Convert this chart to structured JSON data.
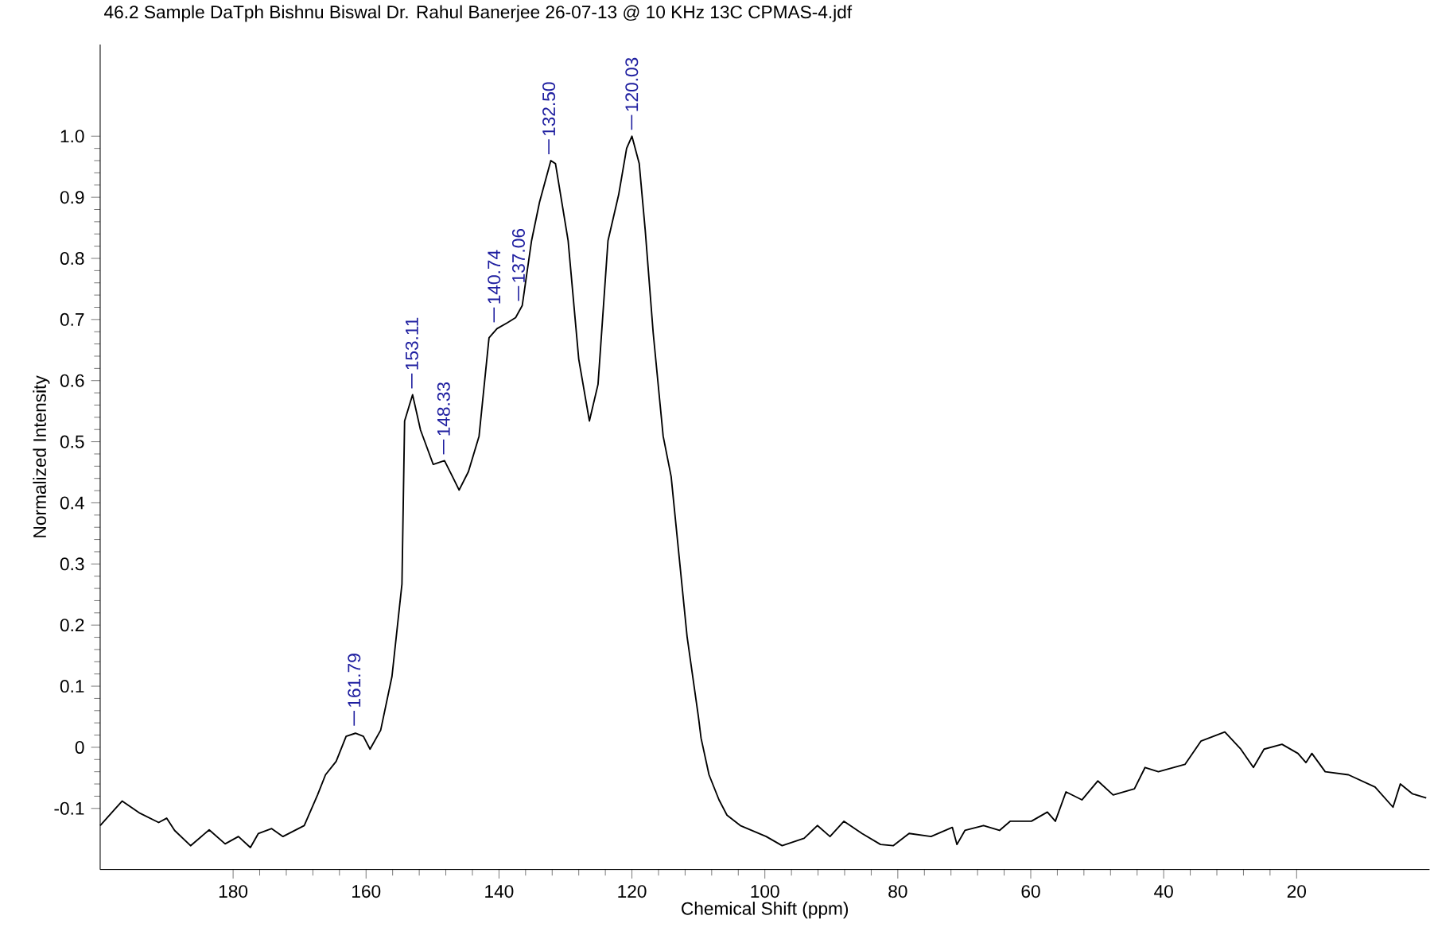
{
  "chart_data": {
    "type": "line",
    "title": "46.2 Sample  DaTph  Bishnu Biswal Dr. Rahul Banerjee  26-07-13 @ 10 KHz  13C CPMAS-4.jdf",
    "xlabel": "Chemical Shift (ppm)",
    "ylabel": "Normalized Intensity",
    "xlim": [
      200,
      0
    ],
    "ylim": [
      -0.2,
      1.15
    ],
    "xticks": [
      20,
      40,
      60,
      80,
      100,
      120,
      140,
      160,
      180
    ],
    "yticks": [
      {
        "value": -0.1,
        "label": "-0.1"
      },
      {
        "value": 0,
        "label": "0"
      },
      {
        "value": 0.1,
        "label": "0.1"
      },
      {
        "value": 0.2,
        "label": "0.2"
      },
      {
        "value": 0.3,
        "label": "0.3"
      },
      {
        "value": 0.4,
        "label": "0.4"
      },
      {
        "value": 0.5,
        "label": "0.5"
      },
      {
        "value": 0.6,
        "label": "0.6"
      },
      {
        "value": 0.7,
        "label": "0.7"
      },
      {
        "value": 0.8,
        "label": "0.8"
      },
      {
        "value": 0.9,
        "label": "0.9"
      },
      {
        "value": 1.0,
        "label": "1.0"
      }
    ],
    "x": [
      200,
      196.7,
      194,
      191.2,
      190,
      188.8,
      186.4,
      183.6,
      181.2,
      179.2,
      177.4,
      176.2,
      174.2,
      172.5,
      169.3,
      167.3,
      166.1,
      164.5,
      163,
      161.6,
      160.4,
      159.4,
      157.8,
      156.1,
      154.6,
      154.2,
      153.0,
      151.8,
      149.9,
      148.2,
      147,
      146,
      144.6,
      143,
      141.5,
      140.3,
      138.7,
      137.5,
      136.5,
      135.1,
      133.9,
      132.2,
      131.5,
      129.6,
      128,
      126.4,
      125.1,
      123.6,
      122,
      120.8,
      120.0,
      118.9,
      118,
      116.8,
      115.3,
      114.1,
      111.7,
      110,
      109.6,
      108.4,
      106.9,
      105.7,
      103.7,
      99.8,
      97.4,
      94.1,
      92.1,
      90.2,
      88.1,
      85.4,
      82.6,
      80.7,
      78.3,
      75,
      71.8,
      71.1,
      69.9,
      67.1,
      64.7,
      63.1,
      59.9,
      57.5,
      56.3,
      54.7,
      52.3,
      49.9,
      47.6,
      44.4,
      42.8,
      40.8,
      36.8,
      34.4,
      30.8,
      28.4,
      26.5,
      24.9,
      22.2,
      19.8,
      18.6,
      17.7,
      15.7,
      12.2,
      8.2,
      5.5,
      4.4,
      2.6,
      0.5
    ],
    "series": [
      {
        "color": "#000000",
        "values": [
          -0.128,
          -0.088,
          -0.108,
          -0.123,
          -0.116,
          -0.136,
          -0.161,
          -0.135,
          -0.158,
          -0.146,
          -0.164,
          -0.141,
          -0.133,
          -0.146,
          -0.128,
          -0.078,
          -0.045,
          -0.023,
          0.018,
          0.023,
          0.018,
          -0.003,
          0.028,
          0.116,
          0.267,
          0.534,
          0.577,
          0.519,
          0.463,
          0.469,
          0.443,
          0.421,
          0.451,
          0.509,
          0.67,
          0.685,
          0.695,
          0.703,
          0.723,
          0.829,
          0.892,
          0.96,
          0.955,
          0.829,
          0.635,
          0.534,
          0.594,
          0.829,
          0.904,
          0.98,
          1.0,
          0.955,
          0.846,
          0.678,
          0.509,
          0.443,
          0.181,
          0.05,
          0.015,
          -0.045,
          -0.086,
          -0.111,
          -0.128,
          -0.146,
          -0.161,
          -0.149,
          -0.128,
          -0.146,
          -0.121,
          -0.141,
          -0.159,
          -0.161,
          -0.141,
          -0.146,
          -0.131,
          -0.159,
          -0.136,
          -0.128,
          -0.136,
          -0.121,
          -0.121,
          -0.106,
          -0.121,
          -0.073,
          -0.086,
          -0.055,
          -0.078,
          -0.068,
          -0.033,
          -0.04,
          -0.028,
          0.01,
          0.025,
          -0.003,
          -0.033,
          -0.003,
          0.005,
          -0.01,
          -0.025,
          -0.01,
          -0.04,
          -0.045,
          -0.065,
          -0.098,
          -0.06,
          -0.076,
          -0.083
        ]
      }
    ],
    "annotations": [
      {
        "text": "161.79",
        "x": 161.79,
        "y": 0.025
      },
      {
        "text": "153.11",
        "x": 153.11,
        "y": 0.577
      },
      {
        "text": "148.33",
        "x": 148.33,
        "y": 0.469
      },
      {
        "text": "140.74",
        "x": 140.74,
        "y": 0.685
      },
      {
        "text": "137.06",
        "x": 137.06,
        "y": 0.72
      },
      {
        "text": "132.50",
        "x": 132.5,
        "y": 0.96
      },
      {
        "text": "120.03",
        "x": 120.03,
        "y": 1.0
      }
    ]
  }
}
